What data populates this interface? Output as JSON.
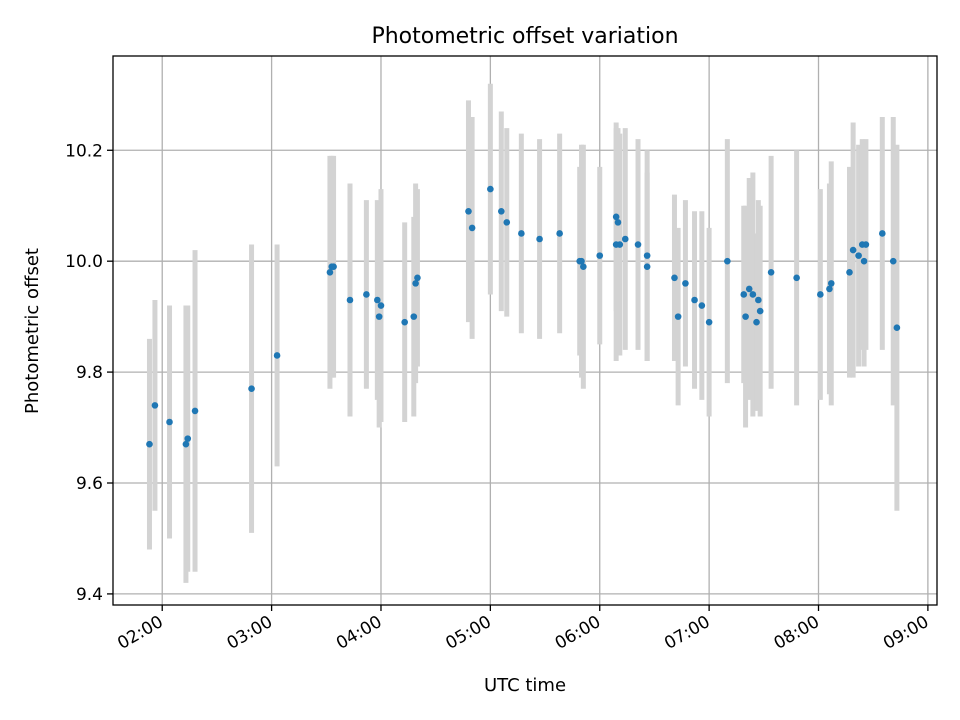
{
  "chart_data": {
    "type": "scatter",
    "title": "Photometric offset variation",
    "xlabel": "UTC time",
    "ylabel": "Photometric offset",
    "x_ticks": [
      "02:00",
      "03:00",
      "04:00",
      "05:00",
      "06:00",
      "07:00",
      "08:00",
      "09:00"
    ],
    "y_ticks": [
      "9.4",
      "9.6",
      "9.8",
      "10.0",
      "10.2"
    ],
    "xlim": [
      "01:33",
      "09:05"
    ],
    "ylim": [
      9.38,
      10.37
    ],
    "grid": true,
    "marker_color": "#1f77b4",
    "errorbar_color": "#d3d3d3",
    "series": [
      {
        "x": [
          "01:53",
          "01:56",
          "02:04",
          "02:13",
          "02:14",
          "02:18",
          "02:49",
          "03:03",
          "03:32",
          "03:33",
          "03:34",
          "03:43",
          "03:52",
          "03:58",
          "03:59",
          "04:00",
          "04:13",
          "04:18",
          "04:19",
          "04:20",
          "04:48",
          "04:50",
          "05:00",
          "05:06",
          "05:09",
          "05:17",
          "05:27",
          "05:38",
          "05:49",
          "05:50",
          "05:51",
          "06:00",
          "06:09",
          "06:09",
          "06:10",
          "06:11",
          "06:14",
          "06:21",
          "06:26",
          "06:26",
          "06:41",
          "06:43",
          "06:47",
          "06:52",
          "06:56",
          "07:00",
          "07:10",
          "07:19",
          "07:20",
          "07:22",
          "07:24",
          "07:26",
          "07:27",
          "07:28",
          "07:34",
          "07:48",
          "08:01",
          "08:06",
          "08:07",
          "08:17",
          "08:19",
          "08:22",
          "08:24",
          "08:25",
          "08:26",
          "08:35",
          "08:41",
          "08:43"
        ],
        "y": [
          9.67,
          9.74,
          9.71,
          9.67,
          9.68,
          9.73,
          9.77,
          9.83,
          9.98,
          9.99,
          9.99,
          9.93,
          9.94,
          9.93,
          9.9,
          9.92,
          9.89,
          9.9,
          9.96,
          9.97,
          10.09,
          10.06,
          10.13,
          10.09,
          10.07,
          10.05,
          10.04,
          10.05,
          10.0,
          10.0,
          9.99,
          10.01,
          10.03,
          10.08,
          10.07,
          10.03,
          10.04,
          10.03,
          10.01,
          9.99,
          9.97,
          9.9,
          9.96,
          9.93,
          9.92,
          9.89,
          10.0,
          9.94,
          9.9,
          9.95,
          9.94,
          9.89,
          9.93,
          9.91,
          9.98,
          9.97,
          9.94,
          9.95,
          9.96,
          9.98,
          10.02,
          10.01,
          10.03,
          10.0,
          10.03,
          10.05,
          10.0,
          9.88
        ],
        "err": [
          0.19,
          0.19,
          0.21,
          0.25,
          0.24,
          0.29,
          0.26,
          0.2,
          0.21,
          0.2,
          0.2,
          0.21,
          0.17,
          0.18,
          0.2,
          0.21,
          0.18,
          0.18,
          0.18,
          0.16,
          0.2,
          0.2,
          0.19,
          0.18,
          0.17,
          0.18,
          0.18,
          0.18,
          0.17,
          0.21,
          0.22,
          0.16,
          0.21,
          0.17,
          0.17,
          0.2,
          0.2,
          0.19,
          0.19,
          0.17,
          0.15,
          0.16,
          0.15,
          0.16,
          0.17,
          0.17,
          0.22,
          0.16,
          0.2,
          0.2,
          0.22,
          0.16,
          0.18,
          0.19,
          0.21,
          0.23,
          0.19,
          0.19,
          0.22,
          0.19,
          0.23,
          0.2,
          0.19,
          0.19,
          0.19,
          0.21,
          0.26,
          0.33
        ]
      }
    ]
  }
}
